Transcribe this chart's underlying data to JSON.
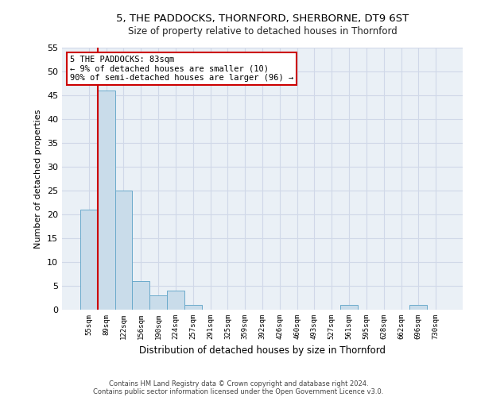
{
  "title1": "5, THE PADDOCKS, THORNFORD, SHERBORNE, DT9 6ST",
  "title2": "Size of property relative to detached houses in Thornford",
  "xlabel": "Distribution of detached houses by size in Thornford",
  "ylabel": "Number of detached properties",
  "footer1": "Contains HM Land Registry data © Crown copyright and database right 2024.",
  "footer2": "Contains public sector information licensed under the Open Government Licence v3.0.",
  "categories": [
    "55sqm",
    "89sqm",
    "122sqm",
    "156sqm",
    "190sqm",
    "224sqm",
    "257sqm",
    "291sqm",
    "325sqm",
    "359sqm",
    "392sqm",
    "426sqm",
    "460sqm",
    "493sqm",
    "527sqm",
    "561sqm",
    "595sqm",
    "628sqm",
    "662sqm",
    "696sqm",
    "730sqm"
  ],
  "bar_values": [
    21,
    46,
    25,
    6,
    3,
    4,
    1,
    0,
    0,
    0,
    0,
    0,
    0,
    0,
    0,
    1,
    0,
    0,
    0,
    1,
    0
  ],
  "bar_color": "#c9dcea",
  "bar_edge_color": "#6aaacb",
  "grid_color": "#d0d8e8",
  "bg_color": "#eaf0f6",
  "marker_color": "#cc0000",
  "annotation_text": "5 THE PADDOCKS: 83sqm\n← 9% of detached houses are smaller (10)\n90% of semi-detached houses are larger (96) →",
  "annotation_box_color": "#cc0000",
  "ylim": [
    0,
    55
  ],
  "yticks": [
    0,
    5,
    10,
    15,
    20,
    25,
    30,
    35,
    40,
    45,
    50,
    55
  ]
}
